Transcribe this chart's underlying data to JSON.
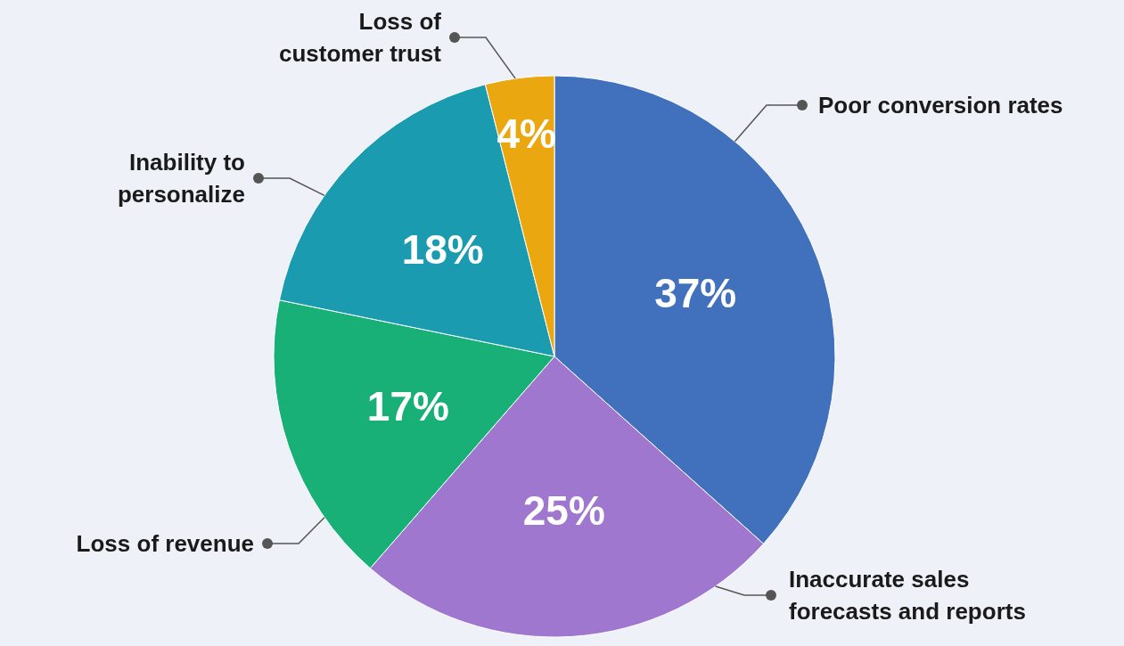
{
  "chart_data": {
    "type": "pie",
    "categories": [
      "Poor conversion rates",
      "Inaccurate sales forecasts and reports",
      "Loss of revenue",
      "Inability to personalize",
      "Loss of customer trust"
    ],
    "values": [
      37,
      25,
      17,
      18,
      4
    ],
    "value_labels": [
      "37%",
      "25%",
      "17%",
      "18%",
      "4%"
    ],
    "colors": [
      "#4170bd",
      "#9f77cf",
      "#18b077",
      "#1a9bb0",
      "#eaa70f"
    ]
  }
}
